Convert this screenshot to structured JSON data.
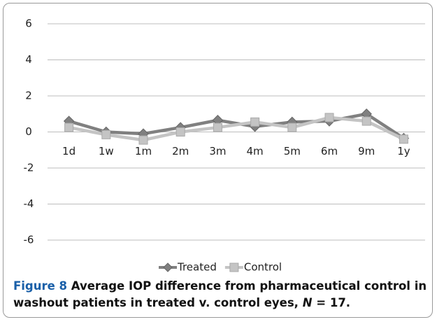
{
  "chart_data": {
    "type": "line",
    "categories": [
      "1d",
      "1w",
      "1m",
      "2m",
      "3m",
      "4m",
      "5m",
      "6m",
      "9m",
      "1y"
    ],
    "series": [
      {
        "name": "Treated",
        "color": "#808080",
        "marker": "diamond",
        "values": [
          0.6,
          0.0,
          -0.1,
          0.25,
          0.65,
          0.3,
          0.55,
          0.6,
          1.0,
          -0.35
        ]
      },
      {
        "name": "Control",
        "color": "#c4c4c4",
        "marker": "square",
        "values": [
          0.25,
          -0.15,
          -0.45,
          0.0,
          0.25,
          0.55,
          0.25,
          0.8,
          0.6,
          -0.4
        ]
      }
    ],
    "ylim": [
      -6,
      6
    ],
    "yticks": [
      -6,
      -4,
      -2,
      0,
      2,
      4,
      6
    ],
    "grid": true,
    "legend": "bottom"
  },
  "caption": {
    "label": "Figure 8",
    "text": "Average IOP difference from pharmaceutical control in washout patients in treated v. control eyes,",
    "n": "N",
    "rest": "= 17."
  }
}
